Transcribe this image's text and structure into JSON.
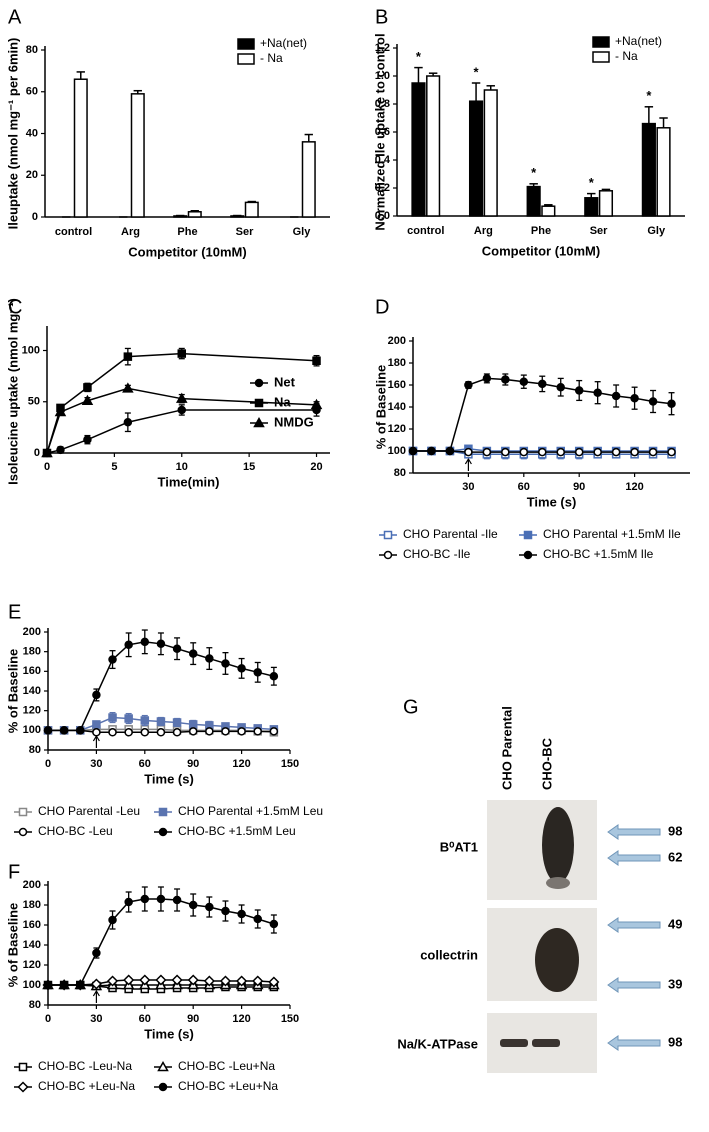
{
  "chart_data": [
    {
      "type": "bar",
      "panel": "A",
      "ylabel": "Ileuptake (nmol mg⁻¹ per 6min)",
      "xlabel": "Competitor (10mM)",
      "categories": [
        "control",
        "Arg",
        "Phe",
        "Ser",
        "Gly"
      ],
      "series": [
        {
          "name": "+Na(net)",
          "color": "#000000",
          "values": [
            0,
            0,
            0.5,
            0.5,
            0
          ],
          "errors": [
            0,
            0,
            0.2,
            0.2,
            0
          ]
        },
        {
          "name": "- Na",
          "color": "#ffffff",
          "values": [
            66,
            59,
            2.5,
            7,
            36
          ],
          "errors": [
            3.5,
            1.5,
            0.5,
            0.4,
            3.5
          ]
        }
      ],
      "ylim": [
        0,
        80
      ],
      "yticks": [
        0,
        20,
        40,
        60,
        80
      ],
      "legend": "upper right"
    },
    {
      "type": "bar",
      "panel": "B",
      "ylabel": "Normalized Ile uptake to control",
      "xlabel": "Competitor (10mM)",
      "categories": [
        "control",
        "Arg",
        "Phe",
        "Ser",
        "Gly"
      ],
      "series": [
        {
          "name": "+Na(net)",
          "color": "#000000",
          "values": [
            0.95,
            0.82,
            0.21,
            0.13,
            0.66
          ],
          "errors": [
            0.11,
            0.13,
            0.02,
            0.03,
            0.12
          ]
        },
        {
          "name": "- Na",
          "color": "#ffffff",
          "values": [
            1.0,
            0.9,
            0.07,
            0.18,
            0.63
          ],
          "errors": [
            0.02,
            0.03,
            0.01,
            0.01,
            0.07
          ]
        }
      ],
      "significance": [
        "*",
        "*",
        "*",
        "*",
        "*"
      ],
      "ylim": [
        0,
        1.2
      ],
      "yticks": [
        {
          "value": 0,
          "label": "0.0"
        },
        0.2,
        0.4,
        0.6,
        0.8,
        {
          "value": 1,
          "label": "1.0"
        },
        1.2
      ],
      "legend": "upper right"
    },
    {
      "type": "line",
      "panel": "C",
      "ylabel": "Isoleucine uptake (nmol mg⁻¹)",
      "xlabel": "Time(min)",
      "x": [
        0,
        1,
        3,
        6,
        10,
        20
      ],
      "series": [
        {
          "name": "Net",
          "color": "#000000",
          "marker": "circle",
          "values": [
            0,
            3,
            13,
            30,
            42,
            42
          ],
          "errors": [
            0,
            3,
            4,
            9,
            5,
            6
          ]
        },
        {
          "name": "Na",
          "color": "#000000",
          "marker": "square",
          "values": [
            0,
            44,
            64,
            94,
            97,
            90
          ],
          "errors": [
            0,
            3,
            4,
            8,
            5,
            5
          ]
        },
        {
          "name": "NMDG",
          "color": "#000000",
          "marker": "triangle",
          "values": [
            0,
            40,
            51,
            63,
            53,
            47
          ],
          "errors": [
            0,
            3,
            3,
            3,
            4,
            3
          ]
        }
      ],
      "xlim": [
        0,
        21
      ],
      "xticks": [
        0,
        5,
        10,
        15,
        20
      ],
      "ylim": [
        0,
        120
      ],
      "yticks": [
        0,
        50,
        100
      ],
      "legend": "center right"
    },
    {
      "type": "line",
      "panel": "D",
      "ylabel": "% of Baseline",
      "xlabel": "Time (s)",
      "arrow_x": 30,
      "x": [
        0,
        10,
        20,
        30,
        40,
        50,
        60,
        70,
        80,
        90,
        100,
        110,
        120,
        130,
        140
      ],
      "series": [
        {
          "name": "CHO Parental -Ile",
          "color": "#4a6fb5",
          "marker": "square-open",
          "values": [
            100,
            100,
            100,
            97,
            97,
            97,
            97,
            97,
            97,
            97,
            97,
            97,
            97,
            97,
            97
          ],
          "errors": [
            0,
            0,
            0,
            3,
            4,
            4,
            4,
            4,
            4,
            4,
            3,
            3,
            3,
            3,
            3
          ]
        },
        {
          "name": "CHO Parental +1.5mM Ile",
          "color": "#4a6fb5",
          "marker": "square",
          "values": [
            100,
            100,
            100,
            102,
            100,
            100,
            100,
            100,
            100,
            100,
            100,
            100,
            100,
            100,
            100
          ],
          "errors": [
            0,
            0,
            0,
            3,
            3,
            3,
            3,
            3,
            3,
            3,
            3,
            3,
            3,
            3,
            3
          ]
        },
        {
          "name": "CHO-BC -Ile",
          "color": "#000000",
          "marker": "circle-open",
          "values": [
            100,
            100,
            100,
            99,
            99,
            99,
            99,
            99,
            99,
            99,
            99,
            99,
            99,
            99,
            99
          ],
          "errors": [
            0,
            0,
            0,
            2,
            2,
            2,
            2,
            2,
            2,
            2,
            2,
            2,
            2,
            2,
            2
          ]
        },
        {
          "name": "CHO-BC +1.5mM Ile",
          "color": "#000000",
          "marker": "circle",
          "values": [
            100,
            100,
            100,
            160,
            166,
            165,
            163,
            161,
            158,
            155,
            153,
            150,
            148,
            145,
            143
          ],
          "errors": [
            0,
            0,
            0,
            3,
            4,
            5,
            6,
            7,
            8,
            9,
            10,
            10,
            10,
            10,
            10
          ]
        }
      ],
      "xlim": [
        0,
        150
      ],
      "xticks": [
        30,
        60,
        90,
        120
      ],
      "ylim": [
        80,
        200
      ],
      "yticks": [
        80,
        100,
        120,
        140,
        160,
        180,
        200
      ],
      "legend": "below"
    },
    {
      "type": "line",
      "panel": "E",
      "ylabel": "% of Baseline",
      "xlabel": "Time (s)",
      "arrow_x": 30,
      "x": [
        0,
        10,
        20,
        30,
        40,
        50,
        60,
        70,
        80,
        90,
        100,
        110,
        120,
        130,
        140
      ],
      "series": [
        {
          "name": "CHO Parental -Leu",
          "color": "#888888",
          "marker": "square-open",
          "values": [
            100,
            100,
            100,
            101,
            101,
            101,
            101,
            101,
            100,
            100,
            100,
            100,
            100,
            99,
            98
          ],
          "errors": [
            0,
            0,
            0,
            2,
            2,
            2,
            2,
            2,
            2,
            2,
            2,
            2,
            2,
            2,
            2
          ]
        },
        {
          "name": "CHO Parental +1.5mM Leu",
          "color": "#5b74b0",
          "marker": "square",
          "values": [
            100,
            100,
            100,
            106,
            113,
            112,
            110,
            109,
            108,
            106,
            105,
            104,
            103,
            102,
            101
          ],
          "errors": [
            0,
            0,
            0,
            3,
            5,
            5,
            5,
            4,
            4,
            4,
            4,
            3,
            3,
            3,
            3
          ]
        },
        {
          "name": "CHO-BC -Leu",
          "color": "#000000",
          "marker": "circle-open",
          "values": [
            100,
            100,
            100,
            98,
            98,
            98,
            98,
            98,
            98,
            99,
            99,
            99,
            99,
            99,
            99
          ],
          "errors": [
            0,
            0,
            0,
            2,
            2,
            2,
            2,
            2,
            2,
            2,
            2,
            2,
            2,
            2,
            2
          ]
        },
        {
          "name": "CHO-BC +1.5mM Leu",
          "color": "#000000",
          "marker": "circle",
          "values": [
            100,
            100,
            100,
            136,
            172,
            187,
            190,
            188,
            183,
            178,
            173,
            168,
            163,
            159,
            155
          ],
          "errors": [
            0,
            0,
            0,
            6,
            9,
            12,
            12,
            11,
            11,
            11,
            11,
            11,
            10,
            10,
            9
          ]
        }
      ],
      "xlim": [
        0,
        150
      ],
      "xticks": [
        0,
        30,
        60,
        90,
        120,
        150
      ],
      "ylim": [
        80,
        200
      ],
      "yticks": [
        80,
        100,
        120,
        140,
        160,
        180,
        200
      ],
      "legend": "below"
    },
    {
      "type": "line",
      "panel": "F",
      "ylabel": "% of Baseline",
      "xlabel": "Time (s)",
      "arrow_x": 30,
      "x": [
        0,
        10,
        20,
        30,
        40,
        50,
        60,
        70,
        80,
        90,
        100,
        110,
        120,
        130,
        140
      ],
      "series": [
        {
          "name": "CHO-BC -Leu-Na",
          "color": "#000000",
          "marker": "square-open",
          "values": [
            100,
            100,
            100,
            99,
            97,
            96,
            96,
            96,
            97,
            97,
            97,
            98,
            98,
            98,
            98
          ],
          "errors": [
            0,
            0,
            0,
            2,
            2,
            2,
            2,
            2,
            2,
            2,
            2,
            2,
            2,
            2,
            2
          ]
        },
        {
          "name": "CHO-BC -Leu+Na",
          "color": "#000000",
          "marker": "triangle-open",
          "values": [
            100,
            100,
            100,
            99,
            100,
            100,
            100,
            100,
            100,
            100,
            100,
            100,
            100,
            100,
            100
          ],
          "errors": [
            0,
            0,
            0,
            2,
            2,
            2,
            2,
            2,
            2,
            2,
            2,
            2,
            2,
            2,
            2
          ]
        },
        {
          "name": "CHO-BC +Leu-Na",
          "color": "#000000",
          "marker": "diamond-open",
          "values": [
            100,
            100,
            100,
            101,
            104,
            105,
            105,
            105,
            105,
            105,
            104,
            104,
            104,
            104,
            103
          ],
          "errors": [
            0,
            0,
            0,
            2,
            2,
            2,
            2,
            2,
            2,
            2,
            2,
            2,
            2,
            2,
            2
          ]
        },
        {
          "name": "CHO-BC +Leu+Na",
          "color": "#000000",
          "marker": "circle",
          "values": [
            100,
            100,
            100,
            132,
            165,
            183,
            186,
            186,
            185,
            180,
            178,
            174,
            171,
            166,
            161
          ],
          "errors": [
            0,
            0,
            0,
            5,
            9,
            10,
            12,
            12,
            11,
            11,
            10,
            10,
            9,
            9,
            9
          ]
        }
      ],
      "xlim": [
        0,
        150
      ],
      "xticks": [
        0,
        30,
        60,
        90,
        120,
        150
      ],
      "ylim": [
        80,
        200
      ],
      "yticks": [
        80,
        100,
        120,
        140,
        160,
        180,
        200
      ],
      "legend": "below"
    }
  ],
  "blot": {
    "panel": "G",
    "lanes": [
      "CHO Parental",
      "CHO-BC"
    ],
    "rows": [
      {
        "label": "B⁰AT1",
        "markers": [
          98,
          62
        ]
      },
      {
        "label": "collectrin",
        "markers": [
          49,
          39
        ]
      },
      {
        "label": "Na/K-ATPase",
        "markers": [
          98
        ]
      }
    ]
  }
}
